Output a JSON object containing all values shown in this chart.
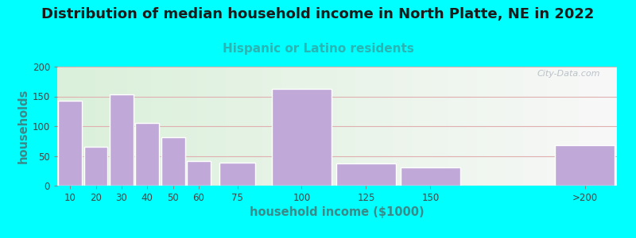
{
  "title": "Distribution of median household income in North Platte, NE in 2022",
  "subtitle": "Hispanic or Latino residents",
  "xlabel": "household income ($1000)",
  "ylabel": "households",
  "title_fontsize": 13,
  "subtitle_fontsize": 11,
  "subtitle_color": "#2ab5b5",
  "ylabel_color": "#3a8a8a",
  "xlabel_color": "#3a8a8a",
  "background_color": "#00ffff",
  "plot_bg_gradient_left": "#daf0da",
  "plot_bg_gradient_right": "#f8f8f8",
  "bar_color": "#c0a8d8",
  "bar_edgecolor": "#ffffff",
  "categories": [
    "10",
    "20",
    "30",
    "40",
    "50",
    "60",
    "75",
    "100",
    "125",
    "150",
    ">200"
  ],
  "positions": [
    10,
    20,
    30,
    40,
    50,
    60,
    75,
    100,
    125,
    150,
    210
  ],
  "widths": [
    10,
    10,
    10,
    10,
    10,
    10,
    15,
    25,
    25,
    25,
    25
  ],
  "values": [
    143,
    65,
    153,
    106,
    82,
    42,
    39,
    163,
    37,
    31,
    68
  ],
  "ylim": [
    0,
    200
  ],
  "yticks": [
    0,
    50,
    100,
    150,
    200
  ],
  "grid_color": "#e0b0b0",
  "watermark": "City-Data.com"
}
